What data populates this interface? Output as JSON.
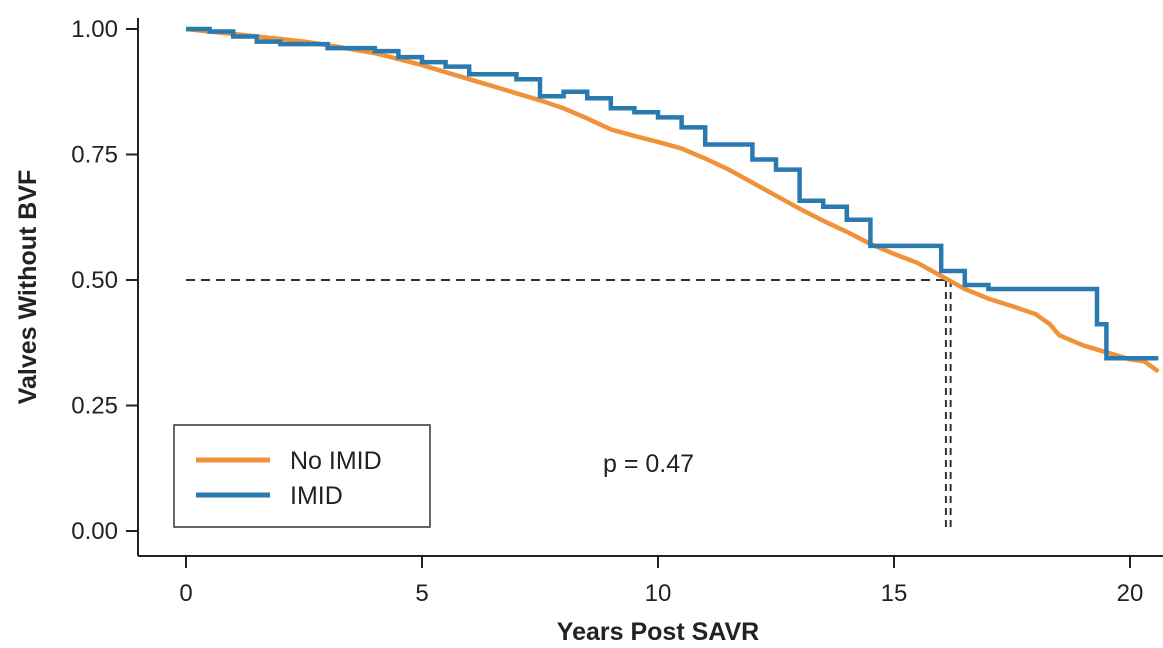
{
  "chart_data": {
    "type": "line",
    "subtype": "kaplan-meier step curve",
    "title": "",
    "xlabel": "Years Post SAVR",
    "ylabel": "Valves Without BVF",
    "xlim": [
      -1,
      20.6
    ],
    "ylim": [
      -0.05,
      1.02
    ],
    "xticks": [
      0,
      5,
      10,
      15,
      20
    ],
    "xtick_labels": [
      "0",
      "5",
      "10",
      "15",
      "20"
    ],
    "yticks": [
      0,
      0.25,
      0.5,
      0.75,
      1.0
    ],
    "ytick_labels": [
      "0.00",
      "0.25",
      "0.50",
      "0.75",
      "1.00"
    ],
    "grid": false,
    "legend_position": "bottom-left",
    "annotation": "p = 0.47",
    "median_line": {
      "y": 0.5,
      "x_no_imid": 16.1,
      "x_imid": 16.2
    },
    "series": [
      {
        "name": "No IMID",
        "color": "#F0923A",
        "points": [
          [
            0,
            1.0
          ],
          [
            0.5,
            0.995
          ],
          [
            1,
            0.99
          ],
          [
            1.5,
            0.985
          ],
          [
            2,
            0.98
          ],
          [
            2.5,
            0.975
          ],
          [
            3,
            0.968
          ],
          [
            3.5,
            0.96
          ],
          [
            4,
            0.952
          ],
          [
            4.5,
            0.94
          ],
          [
            5,
            0.928
          ],
          [
            5.5,
            0.914
          ],
          [
            6,
            0.9
          ],
          [
            6.5,
            0.886
          ],
          [
            7,
            0.872
          ],
          [
            7.5,
            0.858
          ],
          [
            8,
            0.842
          ],
          [
            8.5,
            0.822
          ],
          [
            9,
            0.8
          ],
          [
            9.5,
            0.787
          ],
          [
            10,
            0.775
          ],
          [
            10.5,
            0.762
          ],
          [
            11,
            0.742
          ],
          [
            11.5,
            0.72
          ],
          [
            12,
            0.694
          ],
          [
            12.5,
            0.668
          ],
          [
            13,
            0.642
          ],
          [
            13.5,
            0.618
          ],
          [
            14,
            0.596
          ],
          [
            14.5,
            0.572
          ],
          [
            15,
            0.552
          ],
          [
            15.5,
            0.534
          ],
          [
            16,
            0.508
          ],
          [
            16.5,
            0.482
          ],
          [
            17,
            0.463
          ],
          [
            17.5,
            0.448
          ],
          [
            18,
            0.432
          ],
          [
            18.3,
            0.412
          ],
          [
            18.5,
            0.39
          ],
          [
            19,
            0.37
          ],
          [
            19.5,
            0.356
          ],
          [
            20,
            0.342
          ],
          [
            20.3,
            0.338
          ],
          [
            20.6,
            0.318
          ]
        ]
      },
      {
        "name": "IMID",
        "color": "#2A7AB0",
        "points": [
          [
            0,
            1.0
          ],
          [
            0.5,
            0.995
          ],
          [
            1,
            0.985
          ],
          [
            1.5,
            0.975
          ],
          [
            2,
            0.97
          ],
          [
            3,
            0.962
          ],
          [
            4,
            0.956
          ],
          [
            4.5,
            0.944
          ],
          [
            5,
            0.934
          ],
          [
            5.5,
            0.925
          ],
          [
            6,
            0.91
          ],
          [
            7,
            0.9
          ],
          [
            7.5,
            0.866
          ],
          [
            8,
            0.875
          ],
          [
            8.5,
            0.862
          ],
          [
            9,
            0.842
          ],
          [
            9.5,
            0.834
          ],
          [
            10,
            0.824
          ],
          [
            10.5,
            0.804
          ],
          [
            11,
            0.77
          ],
          [
            12,
            0.74
          ],
          [
            12.5,
            0.72
          ],
          [
            13,
            0.658
          ],
          [
            13.5,
            0.646
          ],
          [
            14,
            0.62
          ],
          [
            14.5,
            0.568
          ],
          [
            15,
            0.568
          ],
          [
            15.5,
            0.568
          ],
          [
            16,
            0.518
          ],
          [
            16.5,
            0.49
          ],
          [
            17,
            0.482
          ],
          [
            18,
            0.482
          ],
          [
            19,
            0.482
          ],
          [
            19.3,
            0.412
          ],
          [
            19.5,
            0.344
          ],
          [
            20,
            0.344
          ],
          [
            20.6,
            0.344
          ]
        ]
      }
    ]
  }
}
